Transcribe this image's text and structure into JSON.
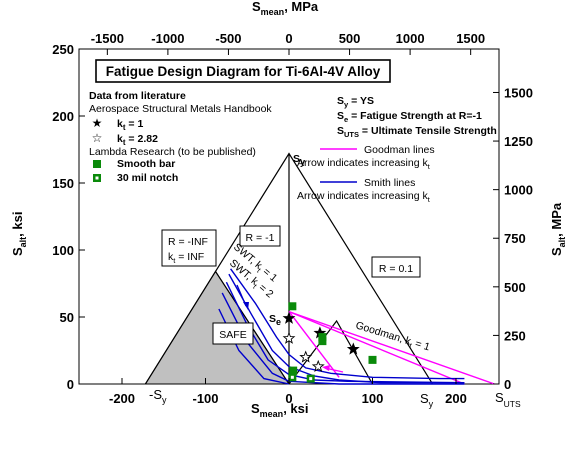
{
  "chart_data": {
    "type": "line",
    "title": "Fatigue Design Diagram for Ti-6Al-4V Alloy",
    "xlabel": {
      "main": "S",
      "sub": "mean",
      "unit": ", ksi"
    },
    "ylabel": {
      "main": "S",
      "sub": "alt",
      "unit": ", ksi"
    },
    "x2label": {
      "main": "S",
      "sub": "mean",
      "unit": ", MPa"
    },
    "y2label": {
      "main": "S",
      "sub": "alt",
      "unit": ", MPa"
    },
    "xlim": [
      -275,
      250
    ],
    "ylim": [
      0,
      250
    ],
    "x_ticks": [
      -200,
      -100,
      0,
      100,
      200
    ],
    "y_ticks": [
      0,
      50,
      100,
      150,
      200,
      250
    ],
    "x2_ticks": [
      -1500,
      -1000,
      -500,
      0,
      500,
      1000,
      1500
    ],
    "y2_ticks": [
      0,
      250,
      500,
      750,
      1000,
      1250,
      1500
    ],
    "x_tick_labels": [
      "-200",
      "-100",
      "0",
      "100",
      "200"
    ],
    "y_tick_labels": [
      "0",
      "50",
      "100",
      "150",
      "200",
      "250"
    ],
    "x2_tick_labels": [
      "-1500",
      "-1000",
      "-500",
      "0",
      "500",
      "1000",
      "1500"
    ],
    "y2_tick_labels": [
      "0",
      "250",
      "500",
      "750",
      "1000",
      "1250",
      "1500"
    ],
    "constants": {
      "Sy": 172,
      "Se": 49,
      "Suts": 246
    },
    "safe_region": [
      [
        -172,
        0
      ],
      [
        -88,
        84
      ],
      [
        0,
        0
      ]
    ],
    "constraint_lines": [
      {
        "points": [
          [
            -172,
            0
          ],
          [
            0,
            172
          ],
          [
            172,
            0
          ]
        ]
      },
      {
        "points": [
          [
            0,
            0
          ],
          [
            0,
            172
          ]
        ]
      },
      {
        "points": [
          [
            0,
            0
          ],
          [
            -88,
            84
          ]
        ]
      },
      {
        "points": [
          [
            0,
            0
          ],
          [
            57,
            47
          ],
          [
            100,
            0
          ]
        ]
      }
    ],
    "series": [
      {
        "name": "Goodman lines",
        "color": "#ff00ff",
        "lines": [
          [
            [
              0,
              54
            ],
            [
              210,
              0
            ]
          ],
          [
            [
              0,
              54
            ],
            [
              246,
              0
            ]
          ],
          [
            [
              0,
              54
            ],
            [
              60,
              5
            ]
          ]
        ]
      },
      {
        "name": "Smith lines",
        "color": "#0000cc",
        "lines": [
          [
            [
              -70,
              86
            ],
            [
              -40,
              60
            ],
            [
              -15,
              35
            ],
            [
              0,
              22
            ],
            [
              20,
              12
            ],
            [
              50,
              8
            ],
            [
              100,
              5
            ],
            [
              180,
              4
            ],
            [
              210,
              4
            ]
          ],
          [
            [
              -72,
              82
            ],
            [
              -45,
              52
            ],
            [
              -20,
              25
            ],
            [
              0,
              13
            ],
            [
              30,
              6
            ],
            [
              60,
              3
            ],
            [
              110,
              1
            ],
            [
              210,
              1
            ]
          ],
          [
            [
              -75,
              76
            ],
            [
              -50,
              44
            ],
            [
              -25,
              18
            ],
            [
              0,
              7
            ],
            [
              30,
              3
            ],
            [
              70,
              2
            ],
            [
              210,
              1
            ]
          ],
          [
            [
              -80,
              68
            ],
            [
              -50,
              31
            ],
            [
              -20,
              8
            ],
            [
              0,
              2
            ],
            [
              60,
              0
            ],
            [
              210,
              0
            ]
          ],
          [
            [
              -84,
              56
            ],
            [
              -60,
              25
            ],
            [
              -30,
              4
            ],
            [
              0,
              0
            ]
          ]
        ]
      }
    ],
    "data_literature_kt1": [
      [
        0,
        49
      ],
      [
        37,
        38
      ],
      [
        77,
        26
      ]
    ],
    "data_literature_kt282": [
      [
        0,
        34
      ],
      [
        20,
        20
      ],
      [
        35,
        13
      ]
    ],
    "data_lambda_smooth": [
      [
        4,
        58
      ],
      [
        40,
        32
      ],
      [
        100,
        18
      ],
      [
        5,
        10
      ],
      [
        40,
        35
      ]
    ],
    "data_lambda_notch": [
      [
        4,
        5
      ],
      [
        26,
        4
      ]
    ],
    "annotations": {
      "sy_top": "S",
      "sy_top_sub": "y",
      "r_neg1": "R = -1",
      "r_01": "R = 0.1",
      "r_inf_1": "R = -INF",
      "r_inf_2a": "k",
      "r_inf_2b": "t",
      "r_inf_2c": " = INF",
      "swt1": "SWT, k",
      "swt1_sub": "t",
      "swt1_val": " = 1",
      "swt2": "SWT, k",
      "swt2_sub": "t",
      "swt2_val": " = 2",
      "goodman_curve": "Goodman, k",
      "goodman_curve_sub": "t",
      "goodman_curve_val": " = 1",
      "se": "S",
      "se_sub": "e",
      "safe": "SAFE",
      "neg_sy": "-S",
      "neg_sy_sub": "y",
      "sy_axis": "S",
      "sy_axis_sub": "y",
      "suts": "S",
      "suts_sub": "UTS"
    },
    "legend": {
      "h1": "Data from literature",
      "h2": "Aerospace Structural Metals Handbook",
      "kt1_a": "k",
      "kt1_b": "t",
      "kt1_c": " = 1",
      "kt282_a": "k",
      "kt282_b": "t",
      "kt282_c": " = 2.82",
      "h3": "Lambda Research (to be published)",
      "smooth": "Smooth bar",
      "notch": "30 mil notch",
      "d1a": "S",
      "d1b": "y",
      "d1c": " = YS",
      "d2a": "S",
      "d2b": "e",
      "d2c": " = Fatigue Strength at R=-1",
      "d3a": "S",
      "d3b": "UTS",
      "d3c": " = Ultimate Tensile Strength",
      "goodman": "Goodman lines",
      "goodman_arrow_a": "Arrow indicates increasing k",
      "goodman_arrow_b": "t",
      "smith": "Smith lines",
      "smith_arrow_a": "Arrow indicates increasing k",
      "smith_arrow_b": "t"
    }
  }
}
